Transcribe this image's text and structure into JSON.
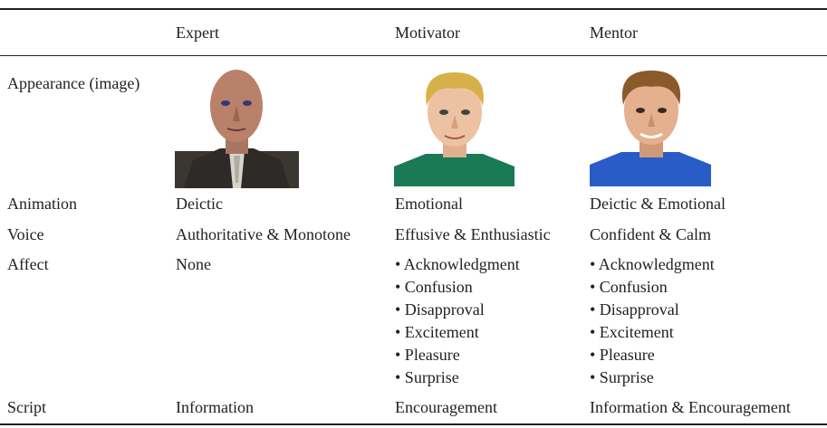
{
  "table": {
    "header": [
      "Expert",
      "Motivator",
      "Mentor"
    ],
    "rows": [
      {
        "label": "Appearance (image)"
      },
      {
        "label": "Animation",
        "cells": [
          "Deictic",
          "Emotional",
          "Deictic & Emotional"
        ]
      },
      {
        "label": "Voice",
        "cells": [
          "Authoritative & Monotone",
          "Effusive & Enthusiastic",
          "Confident & Calm"
        ]
      },
      {
        "label": "Affect",
        "cells": [
          [
            "None"
          ],
          [
            "• Acknowledgment",
            "• Confusion",
            "• Disapproval",
            "• Excitement",
            "• Pleasure",
            "• Surprise"
          ],
          [
            "• Acknowledgment",
            "• Confusion",
            "• Disapproval",
            "• Excitement",
            "• Pleasure",
            "• Surprise"
          ]
        ]
      },
      {
        "label": "Script",
        "cells": [
          "Information",
          "Encouragement",
          "Information & Encouragement"
        ]
      }
    ]
  }
}
